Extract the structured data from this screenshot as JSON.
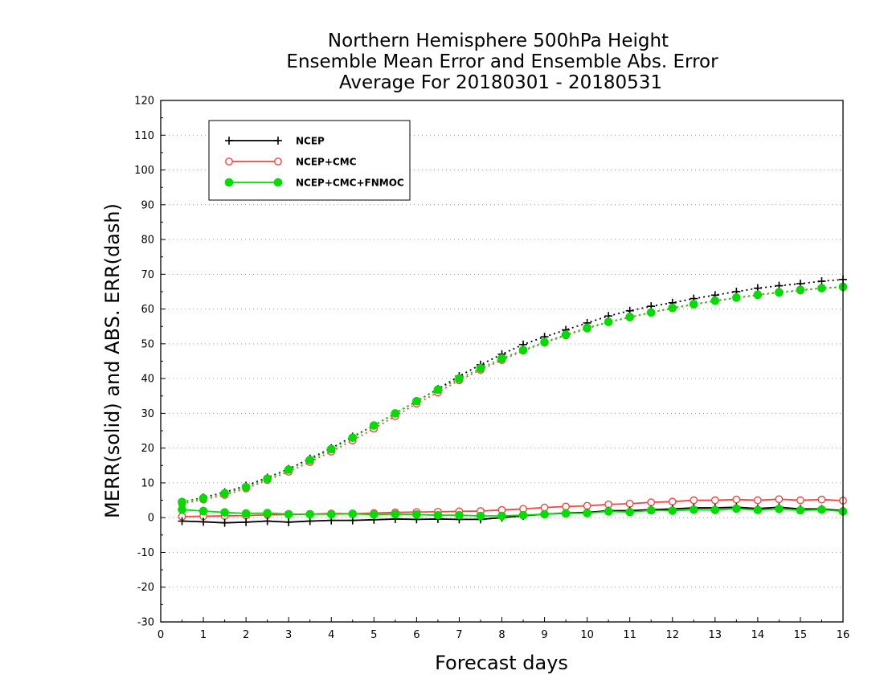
{
  "chart_data": {
    "type": "line",
    "title_lines": [
      "Northern Hemisphere 500hPa Height",
      "Ensemble Mean Error and Ensemble Abs. Error",
      "Average For 20180301 - 20180531"
    ],
    "xlabel": "Forecast days",
    "ylabel": "MERR(solid) and ABS. ERR(dash)",
    "xlim": [
      0,
      16
    ],
    "ylim": [
      -30,
      120
    ],
    "xticks": [
      0,
      1,
      2,
      3,
      4,
      5,
      6,
      7,
      8,
      9,
      10,
      11,
      12,
      13,
      14,
      15,
      16
    ],
    "yticks": [
      -30,
      -20,
      -10,
      0,
      10,
      20,
      30,
      40,
      50,
      60,
      70,
      80,
      90,
      100,
      110,
      120
    ],
    "grid": "horizontal dotted",
    "legend_position": "top-left",
    "x": [
      0.5,
      1,
      1.5,
      2,
      2.5,
      3,
      3.5,
      4,
      4.5,
      5,
      5.5,
      6,
      6.5,
      7,
      7.5,
      8,
      8.5,
      9,
      9.5,
      10,
      10.5,
      11,
      11.5,
      12,
      12.5,
      13,
      13.5,
      14,
      14.5,
      15,
      15.5,
      16
    ],
    "series": [
      {
        "name": "NCEP",
        "color": "#000000",
        "marker": "plus",
        "merr": [
          -1.0,
          -1.2,
          -1.5,
          -1.3,
          -1.0,
          -1.3,
          -1.0,
          -0.8,
          -0.8,
          -0.6,
          -0.4,
          -0.5,
          -0.4,
          -0.5,
          -0.5,
          0.0,
          0.5,
          1.0,
          1.3,
          1.5,
          2.0,
          2.0,
          2.3,
          2.5,
          2.8,
          2.8,
          3.0,
          2.6,
          3.0,
          2.5,
          2.5,
          2.0
        ],
        "abs_err": [
          4.5,
          5.8,
          7.3,
          9.2,
          11.5,
          14.0,
          17.0,
          20.0,
          23.3,
          26.5,
          30.0,
          33.5,
          37.0,
          40.7,
          44.0,
          47.0,
          49.8,
          52.0,
          54.0,
          56.0,
          58.0,
          59.5,
          60.8,
          61.8,
          63.0,
          64.0,
          65.0,
          66.0,
          66.7,
          67.3,
          68.0,
          68.5
        ]
      },
      {
        "name": "NCEP+CMC",
        "color": "#ff4040",
        "marker": "open-circle",
        "merr": [
          0.3,
          0.4,
          0.5,
          0.6,
          0.8,
          0.9,
          1.0,
          1.2,
          1.1,
          1.3,
          1.5,
          1.6,
          1.7,
          1.8,
          1.9,
          2.2,
          2.5,
          2.9,
          3.2,
          3.4,
          3.8,
          4.0,
          4.4,
          4.6,
          5.0,
          5.0,
          5.2,
          5.0,
          5.3,
          5.0,
          5.2,
          4.9
        ],
        "abs_err": [
          4.0,
          5.2,
          6.5,
          8.4,
          10.8,
          13.2,
          16.0,
          19.0,
          22.2,
          25.6,
          29.2,
          32.8,
          36.0,
          39.5,
          42.5,
          45.3,
          48.0,
          50.3,
          52.4,
          54.4,
          56.2,
          57.6,
          59.0,
          60.2,
          61.3,
          62.3,
          63.2,
          64.0,
          64.7,
          65.3,
          66.0,
          66.3
        ]
      },
      {
        "name": "NCEP+CMC+FNMOC",
        "color": "#00dd00",
        "marker": "filled-circle",
        "merr": [
          2.3,
          1.9,
          1.5,
          1.2,
          1.3,
          1.0,
          1.0,
          1.0,
          1.1,
          0.9,
          1.0,
          0.9,
          0.7,
          0.7,
          0.5,
          0.5,
          0.7,
          1.0,
          1.2,
          1.3,
          1.8,
          1.6,
          2.1,
          2.0,
          2.3,
          2.2,
          2.6,
          2.2,
          2.5,
          2.1,
          2.3,
          1.8
        ],
        "abs_err": [
          4.5,
          5.6,
          7.0,
          8.8,
          11.2,
          13.8,
          16.6,
          19.7,
          23.0,
          26.5,
          30.0,
          33.5,
          36.8,
          40.0,
          43.0,
          45.8,
          48.2,
          50.5,
          52.6,
          54.6,
          56.3,
          57.7,
          59.0,
          60.3,
          61.4,
          62.4,
          63.3,
          64.1,
          64.8,
          65.5,
          66.0,
          66.4
        ]
      }
    ]
  }
}
